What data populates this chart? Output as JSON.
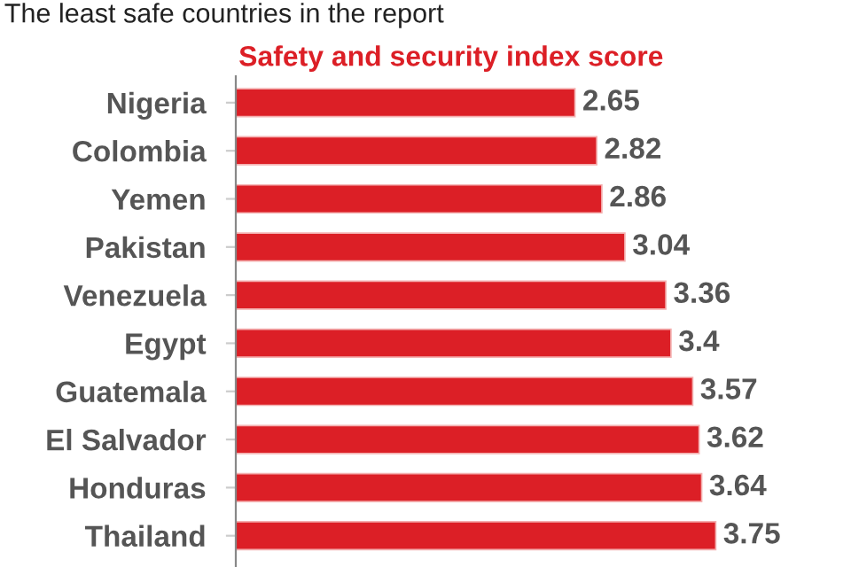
{
  "chart_data": {
    "type": "bar",
    "orientation": "horizontal",
    "title": "The least safe countries in the report",
    "subtitle": "Safety and security index score",
    "categories": [
      "Nigeria",
      "Colombia",
      "Yemen",
      "Pakistan",
      "Venezuela",
      "Egypt",
      "Guatemala",
      "El Salvador",
      "Honduras",
      "Thailand"
    ],
    "values": [
      2.65,
      2.82,
      2.86,
      3.04,
      3.36,
      3.4,
      3.57,
      3.62,
      3.64,
      3.75
    ],
    "color": "#dc1f26",
    "data_labels": true,
    "grid": false,
    "legend": false
  }
}
